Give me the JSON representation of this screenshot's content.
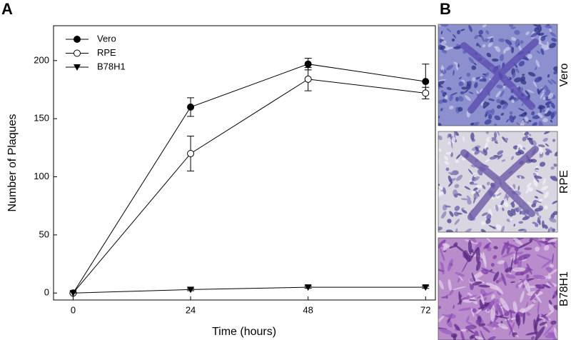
{
  "chart_data": {
    "type": "line",
    "panel_label": "A",
    "xlabel": "Time (hours)",
    "ylabel": "Number of Plaques",
    "x": [
      0,
      24,
      48,
      72
    ],
    "series": [
      {
        "name": "Vero",
        "color": "#000000",
        "marker": "filled-circle",
        "values": [
          0,
          160,
          197,
          182
        ],
        "errors": [
          0,
          8,
          5,
          15
        ]
      },
      {
        "name": "RPE",
        "color": "#000000",
        "marker": "open-circle",
        "values": [
          0,
          120,
          184,
          172
        ],
        "errors": [
          0,
          15,
          10,
          5
        ]
      },
      {
        "name": "B78H1",
        "color": "#000000",
        "marker": "triangle-down",
        "values": [
          0,
          3,
          5,
          5
        ],
        "errors": [
          0,
          1,
          1,
          1
        ]
      }
    ],
    "xlim": [
      -4,
      74
    ],
    "ylim": [
      -6,
      230
    ],
    "xticks": [
      0,
      24,
      48,
      72
    ],
    "yticks": [
      0,
      50,
      100,
      150,
      200
    ],
    "legend": "upper-left"
  },
  "panel_b": {
    "label": "B",
    "images": [
      {
        "label": "Vero"
      },
      {
        "label": "RPE"
      },
      {
        "label": "B78H1"
      }
    ]
  }
}
